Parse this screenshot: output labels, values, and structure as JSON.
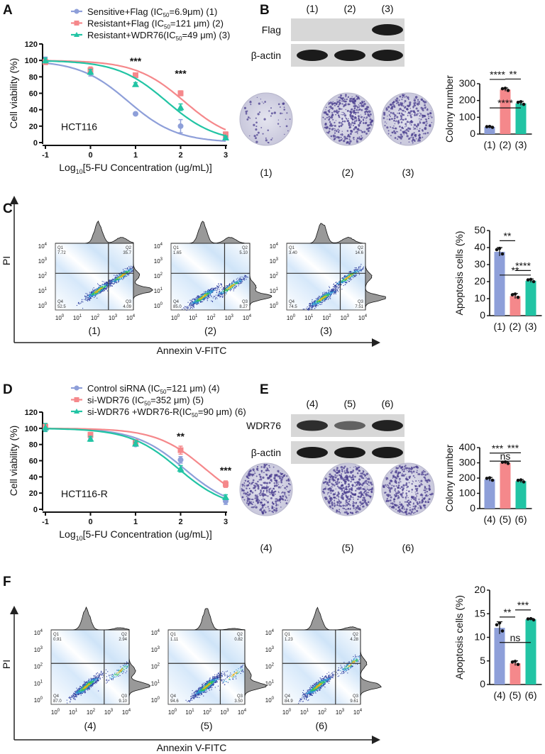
{
  "panel_letters": [
    "A",
    "B",
    "C",
    "D",
    "E",
    "F"
  ],
  "colors": {
    "blue": "#8e9fd9",
    "red": "#f5888b",
    "green": "#22c4a4"
  },
  "blots": [
    {
      "lanes": [
        "(1)",
        "(2)",
        "(3)"
      ],
      "rows": [
        {
          "label": "Flag",
          "intensity": [
            0,
            0,
            1
          ]
        },
        {
          "label": "β-actin",
          "intensity": [
            1,
            1,
            1
          ]
        }
      ]
    },
    {
      "lanes": [
        "(4)",
        "(5)",
        "(6)"
      ],
      "rows": [
        {
          "label": "WDR76",
          "intensity": [
            0.85,
            0.45,
            0.95
          ]
        },
        {
          "label": "β-actin",
          "intensity": [
            1,
            1,
            1
          ]
        }
      ]
    }
  ],
  "dishes": [
    {
      "labels": [
        "(1)",
        "(2)",
        "(3)"
      ],
      "density": [
        0.08,
        0.9,
        0.7
      ]
    },
    {
      "labels": [
        "(4)",
        "(5)",
        "(6)"
      ],
      "density": [
        0.8,
        1.0,
        0.8
      ]
    }
  ],
  "flow": {
    "x_label": "Annexin V-FITC",
    "y_label": "PI",
    "tick_labels": [
      "10",
      "10",
      "10",
      "10",
      "10"
    ],
    "tick_exps": [
      "0",
      "1",
      "2",
      "3",
      "4"
    ],
    "groups": [
      {
        "plots": [
          {
            "label": "(1)",
            "q1": "7.72",
            "q2": "35.7",
            "q3": "4.09",
            "q4": "52.5"
          },
          {
            "label": "(2)",
            "q1": "1.65",
            "q2": "5.10",
            "q3": "8.27",
            "q4": "85.0"
          },
          {
            "label": "(3)",
            "q1": "3.40",
            "q2": "14.6",
            "q3": "7.51",
            "q4": "74.5"
          }
        ]
      },
      {
        "plots": [
          {
            "label": "(4)",
            "q1": "0.91",
            "q2": "2.94",
            "q3": "9.10",
            "q4": "87.0"
          },
          {
            "label": "(5)",
            "q1": "1.11",
            "q2": "0.82",
            "q3": "3.50",
            "q4": "94.6"
          },
          {
            "label": "(6)",
            "q1": "1.23",
            "q2": "4.28",
            "q3": "9.61",
            "q4": "84.9"
          }
        ]
      }
    ],
    "quad_names": [
      "Q1",
      "Q2",
      "Q3",
      "Q4"
    ]
  },
  "chart_data": [
    {
      "id": "A",
      "type": "line",
      "ylabel": "Cell viability (%)",
      "xlabel_pre": "Log",
      "xlabel_sub": "10",
      "xlabel_post": "[5-FU Concentration (ug/mL)]",
      "cell_line": "HCT116",
      "x": [
        -1,
        0,
        1,
        2,
        3
      ],
      "xlim": [
        -1,
        3
      ],
      "ylim": [
        0,
        120
      ],
      "yticks": [
        0,
        20,
        40,
        60,
        80,
        100,
        120
      ],
      "series": [
        {
          "name_pre": "Sensitive+Flag (IC",
          "name_sub": "50",
          "name_post": "=6.9μm) (1)",
          "ic50": 6.9,
          "color": "#8e9fd9",
          "marker": "circle",
          "values": [
            100,
            85,
            35,
            20,
            6
          ],
          "err": [
            4,
            4,
            1,
            8,
            2
          ]
        },
        {
          "name_pre": "Resistant+Flag (IC",
          "name_sub": "50",
          "name_post": "=121 μm) (2)",
          "ic50": 121,
          "color": "#f5888b",
          "marker": "square",
          "values": [
            98,
            88,
            82,
            60,
            10
          ],
          "err": [
            3,
            4,
            2,
            3,
            3
          ]
        },
        {
          "name_pre": "Resistant+WDR76(IC",
          "name_sub": "50",
          "name_post": "=49 μm) (3)",
          "ic50": 49,
          "color": "#22c4a4",
          "marker": "triangle",
          "values": [
            100,
            86,
            71,
            43,
            6
          ],
          "err": [
            3,
            3,
            2,
            4,
            2
          ]
        }
      ],
      "annotations": [
        {
          "x": 1,
          "y": 95,
          "text": "***"
        },
        {
          "x": 2,
          "y": 80,
          "text": "***"
        }
      ]
    },
    {
      "id": "B",
      "type": "bar",
      "ylabel": "Colony number",
      "categories": [
        "(1)",
        "(2)",
        "(3)"
      ],
      "values": [
        42,
        265,
        183
      ],
      "err": [
        4,
        10,
        12
      ],
      "ylim": [
        0,
        300
      ],
      "yticks": [
        0,
        100,
        200,
        300
      ],
      "colors": [
        "#8e9fd9",
        "#f5888b",
        "#22c4a4"
      ],
      "significance": [
        {
          "from": 0,
          "to": 1,
          "text": "****"
        },
        {
          "from": 1,
          "to": 2,
          "text": "**"
        },
        {
          "from": 0,
          "to": 2,
          "text": "****"
        }
      ]
    },
    {
      "id": "C",
      "type": "bar",
      "ylabel": "Apoptosis cells (%)",
      "categories": [
        "(1)",
        "(2)",
        "(3)"
      ],
      "values": [
        37.5,
        11.5,
        20.5
      ],
      "err": [
        2.5,
        1.5,
        1
      ],
      "ylim": [
        0,
        50
      ],
      "yticks": [
        0,
        10,
        20,
        30,
        40,
        50
      ],
      "colors": [
        "#8e9fd9",
        "#f5888b",
        "#22c4a4"
      ],
      "significance": [
        {
          "from": 1,
          "to": 2,
          "text": "****"
        },
        {
          "from": 0,
          "to": 1,
          "text": "**"
        },
        {
          "from": 0,
          "to": 2,
          "text": "**"
        }
      ]
    },
    {
      "id": "D",
      "type": "line",
      "ylabel": "Cell viability (%)",
      "xlabel_pre": "Log",
      "xlabel_sub": "10",
      "xlabel_post": "[5-FU Concentration (ug/mL)]",
      "cell_line": "HCT116-R",
      "x": [
        -1,
        0,
        1,
        2,
        3
      ],
      "xlim": [
        -1,
        3
      ],
      "ylim": [
        0,
        120
      ],
      "yticks": [
        0,
        20,
        40,
        60,
        80,
        100,
        120
      ],
      "series": [
        {
          "name_pre": "Control siRNA (IC",
          "name_sub": "50",
          "name_post": "=121 μm) (4)",
          "ic50": 121,
          "color": "#8e9fd9",
          "marker": "circle",
          "values": [
            100,
            90,
            80,
            61,
            10
          ],
          "err": [
            3,
            3,
            2,
            4,
            4
          ]
        },
        {
          "name_pre": "si-WDR76 (IC",
          "name_sub": "50",
          "name_post": "=352 μm) (5)",
          "ic50": 352,
          "color": "#f5888b",
          "marker": "square",
          "values": [
            102,
            92,
            83,
            73,
            31
          ],
          "err": [
            3,
            3,
            2,
            5,
            4
          ]
        },
        {
          "name_pre": "si-WDR76 +WDR76-R(IC",
          "name_sub": "50",
          "name_post": "=90 μm) (6)",
          "ic50": 90,
          "color": "#22c4a4",
          "marker": "triangle",
          "values": [
            101,
            87,
            81,
            50,
            15
          ],
          "err": [
            5,
            3,
            2,
            4,
            3
          ]
        }
      ],
      "annotations": [
        {
          "x": 2,
          "y": 86,
          "text": "**"
        },
        {
          "x": 3,
          "y": 44,
          "text": "***"
        }
      ]
    },
    {
      "id": "E",
      "type": "bar",
      "ylabel": "Colony number",
      "categories": [
        "(4)",
        "(5)",
        "(6)"
      ],
      "values": [
        192,
        300,
        180
      ],
      "err": [
        12,
        8,
        10
      ],
      "ylim": [
        0,
        400
      ],
      "yticks": [
        0,
        100,
        200,
        300,
        400
      ],
      "colors": [
        "#8e9fd9",
        "#f5888b",
        "#22c4a4"
      ],
      "significance": [
        {
          "from": 0,
          "to": 1,
          "text": "***"
        },
        {
          "from": 1,
          "to": 2,
          "text": "***"
        },
        {
          "from": 0,
          "to": 2,
          "text": "ns"
        }
      ]
    },
    {
      "id": "F",
      "type": "bar",
      "ylabel": "Apoptosis cells (%)",
      "categories": [
        "(4)",
        "(5)",
        "(6)"
      ],
      "values": [
        12,
        4.5,
        13.8
      ],
      "err": [
        1.3,
        0.5,
        0.2
      ],
      "ylim": [
        0,
        20
      ],
      "yticks": [
        0,
        5,
        10,
        15,
        20
      ],
      "colors": [
        "#8e9fd9",
        "#f5888b",
        "#22c4a4"
      ],
      "significance": [
        {
          "from": 0,
          "to": 1,
          "text": "**"
        },
        {
          "from": 1,
          "to": 2,
          "text": "***"
        },
        {
          "from": 0,
          "to": 2,
          "text": "ns"
        }
      ]
    }
  ]
}
